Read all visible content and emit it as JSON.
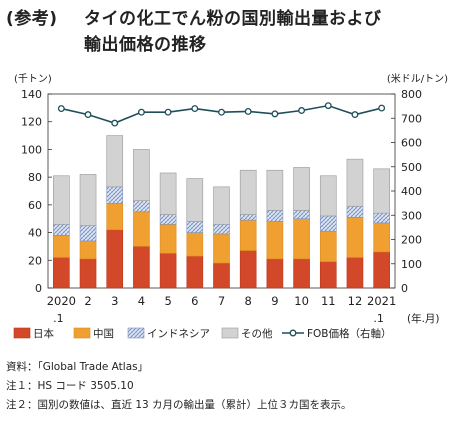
{
  "title_prefix": "(参考)",
  "title_line1": "タイの化工でん粉の国別輸出量および",
  "title_line2": "輸出価格の推移",
  "notes": [
    "資料：「Global Trade Atlas」",
    "注１：HS コード 3505.10",
    "注２：国別の数値は、直近 13 カ月の輸出量（累計）上位３カ国を表示。"
  ],
  "colors": {
    "japan": "#d4482a",
    "china": "#f0a030",
    "indonesia": "#c9d4ea",
    "other": "#d2d2d2",
    "fob": "#1f4e5a"
  },
  "chart_data": {
    "type": "bar",
    "stacked": true,
    "categories": [
      "2020\n.1",
      "2",
      "3",
      "4",
      "5",
      "6",
      "7",
      "8",
      "9",
      "10",
      "11",
      "12",
      "2021\n.1"
    ],
    "x_unit": "(年.月)",
    "ylabel": "(千トン)",
    "ylim": [
      0,
      140
    ],
    "yticks": [
      0,
      20,
      40,
      60,
      80,
      100,
      120,
      140
    ],
    "y2label": "(米ドル/トン)",
    "y2lim": [
      0,
      800
    ],
    "y2ticks": [
      0,
      100,
      200,
      300,
      400,
      500,
      600,
      700,
      800
    ],
    "grid": false,
    "legend_position": "bottom",
    "series": [
      {
        "name": "日本",
        "axis": "left",
        "values": [
          22,
          21,
          42,
          30,
          25,
          23,
          18,
          27,
          21,
          21,
          19,
          22,
          26
        ]
      },
      {
        "name": "中国",
        "axis": "left",
        "values": [
          16,
          13,
          19,
          25,
          21,
          17,
          21,
          22,
          27,
          29,
          22,
          29,
          21
        ]
      },
      {
        "name": "インドネシア",
        "axis": "left",
        "values": [
          8,
          11,
          12,
          8,
          7,
          8,
          7,
          4,
          8,
          6,
          11,
          8,
          7
        ]
      },
      {
        "name": "その他",
        "axis": "left",
        "values": [
          35,
          37,
          37,
          37,
          30,
          31,
          27,
          32,
          29,
          31,
          29,
          34,
          32
        ]
      },
      {
        "name": "FOB価格（右軸）",
        "axis": "right",
        "type": "line",
        "values": [
          740,
          715,
          680,
          725,
          725,
          740,
          725,
          728,
          718,
          732,
          752,
          715,
          742
        ]
      }
    ]
  }
}
